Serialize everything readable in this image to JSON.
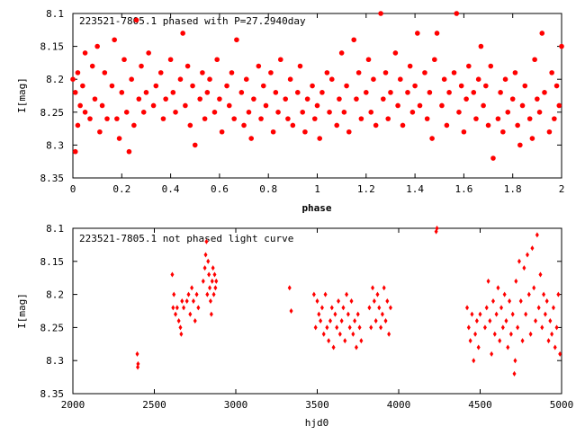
{
  "chart_data": [
    {
      "type": "scatter",
      "title": "223521-7805.1 phased with P=27.2940day",
      "xlabel": "phase",
      "ylabel": "I[mag]",
      "xlim": [
        0,
        2
      ],
      "ylim": [
        8.1,
        8.35
      ],
      "y_inverted": true,
      "xticks": [
        "0",
        "0.2",
        "0.4",
        "0.6",
        "0.8",
        "1",
        "1.2",
        "1.4",
        "1.6",
        "1.8",
        "2"
      ],
      "xtick_values": [
        0,
        0.2,
        0.4,
        0.6,
        0.8,
        1.0,
        1.2,
        1.4,
        1.6,
        1.8,
        2.0
      ],
      "yticks": [
        "8.1",
        "8.15",
        "8.2",
        "8.25",
        "8.3",
        "8.35"
      ],
      "ytick_values": [
        8.1,
        8.15,
        8.2,
        8.25,
        8.3,
        8.35
      ],
      "grid": false,
      "marker": "filled-circle",
      "color": "#ff0000",
      "points": [
        [
          0.0,
          8.2
        ],
        [
          0.01,
          8.22
        ],
        [
          0.01,
          8.31
        ],
        [
          0.02,
          8.27
        ],
        [
          0.02,
          8.19
        ],
        [
          0.03,
          8.24
        ],
        [
          0.04,
          8.21
        ],
        [
          0.05,
          8.25
        ],
        [
          0.05,
          8.16
        ],
        [
          0.07,
          8.26
        ],
        [
          0.08,
          8.18
        ],
        [
          0.09,
          8.23
        ],
        [
          0.1,
          8.15
        ],
        [
          0.11,
          8.28
        ],
        [
          0.12,
          8.24
        ],
        [
          0.13,
          8.19
        ],
        [
          0.14,
          8.26
        ],
        [
          0.16,
          8.21
        ],
        [
          0.17,
          8.14
        ],
        [
          0.18,
          8.26
        ],
        [
          0.19,
          8.29
        ],
        [
          0.2,
          8.22
        ],
        [
          0.21,
          8.17
        ],
        [
          0.22,
          8.25
        ],
        [
          0.23,
          8.31
        ],
        [
          0.24,
          8.2
        ],
        [
          0.25,
          8.27
        ],
        [
          0.26,
          8.11
        ],
        [
          0.27,
          8.23
        ],
        [
          0.28,
          8.18
        ],
        [
          0.29,
          8.25
        ],
        [
          0.3,
          8.22
        ],
        [
          0.31,
          8.16
        ],
        [
          0.33,
          8.24
        ],
        [
          0.34,
          8.21
        ],
        [
          0.36,
          8.19
        ],
        [
          0.37,
          8.26
        ],
        [
          0.38,
          8.23
        ],
        [
          0.4,
          8.17
        ],
        [
          0.41,
          8.22
        ],
        [
          0.42,
          8.25
        ],
        [
          0.44,
          8.2
        ],
        [
          0.45,
          8.13
        ],
        [
          0.46,
          8.24
        ],
        [
          0.47,
          8.18
        ],
        [
          0.48,
          8.27
        ],
        [
          0.49,
          8.21
        ],
        [
          0.5,
          8.3
        ],
        [
          0.52,
          8.23
        ],
        [
          0.53,
          8.19
        ],
        [
          0.54,
          8.26
        ],
        [
          0.55,
          8.22
        ],
        [
          0.56,
          8.2
        ],
        [
          0.58,
          8.25
        ],
        [
          0.59,
          8.17
        ],
        [
          0.6,
          8.23
        ],
        [
          0.61,
          8.28
        ],
        [
          0.63,
          8.21
        ],
        [
          0.64,
          8.24
        ],
        [
          0.65,
          8.19
        ],
        [
          0.66,
          8.26
        ],
        [
          0.67,
          8.14
        ],
        [
          0.69,
          8.22
        ],
        [
          0.7,
          8.27
        ],
        [
          0.71,
          8.2
        ],
        [
          0.72,
          8.25
        ],
        [
          0.73,
          8.29
        ],
        [
          0.74,
          8.23
        ],
        [
          0.76,
          8.18
        ],
        [
          0.77,
          8.26
        ],
        [
          0.78,
          8.21
        ],
        [
          0.79,
          8.24
        ],
        [
          0.81,
          8.19
        ],
        [
          0.82,
          8.28
        ],
        [
          0.83,
          8.22
        ],
        [
          0.84,
          8.25
        ],
        [
          0.85,
          8.17
        ],
        [
          0.87,
          8.23
        ],
        [
          0.88,
          8.26
        ],
        [
          0.89,
          8.2
        ],
        [
          0.9,
          8.27
        ],
        [
          0.92,
          8.22
        ],
        [
          0.93,
          8.18
        ],
        [
          0.94,
          8.25
        ],
        [
          0.95,
          8.28
        ],
        [
          0.96,
          8.23
        ],
        [
          0.98,
          8.21
        ],
        [
          0.99,
          8.26
        ],
        [
          1.0,
          8.24
        ],
        [
          1.01,
          8.29
        ],
        [
          1.02,
          8.22
        ],
        [
          1.04,
          8.19
        ],
        [
          1.05,
          8.25
        ],
        [
          1.06,
          8.2
        ],
        [
          1.08,
          8.27
        ],
        [
          1.09,
          8.23
        ],
        [
          1.1,
          8.16
        ],
        [
          1.11,
          8.25
        ],
        [
          1.12,
          8.21
        ],
        [
          1.13,
          8.28
        ],
        [
          1.15,
          8.14
        ],
        [
          1.16,
          8.23
        ],
        [
          1.17,
          8.19
        ],
        [
          1.18,
          8.26
        ],
        [
          1.2,
          8.22
        ],
        [
          1.21,
          8.17
        ],
        [
          1.22,
          8.25
        ],
        [
          1.23,
          8.2
        ],
        [
          1.24,
          8.27
        ],
        [
          1.26,
          8.1
        ],
        [
          1.27,
          8.23
        ],
        [
          1.28,
          8.19
        ],
        [
          1.29,
          8.26
        ],
        [
          1.3,
          8.22
        ],
        [
          1.32,
          8.16
        ],
        [
          1.33,
          8.24
        ],
        [
          1.34,
          8.2
        ],
        [
          1.35,
          8.27
        ],
        [
          1.37,
          8.22
        ],
        [
          1.38,
          8.18
        ],
        [
          1.39,
          8.25
        ],
        [
          1.4,
          8.21
        ],
        [
          1.41,
          8.13
        ],
        [
          1.42,
          8.24
        ],
        [
          1.44,
          8.19
        ],
        [
          1.45,
          8.26
        ],
        [
          1.46,
          8.22
        ],
        [
          1.47,
          8.29
        ],
        [
          1.48,
          8.17
        ],
        [
          1.49,
          8.13
        ],
        [
          1.51,
          8.24
        ],
        [
          1.52,
          8.2
        ],
        [
          1.53,
          8.27
        ],
        [
          1.54,
          8.22
        ],
        [
          1.56,
          8.19
        ],
        [
          1.57,
          8.1
        ],
        [
          1.58,
          8.25
        ],
        [
          1.59,
          8.21
        ],
        [
          1.6,
          8.28
        ],
        [
          1.61,
          8.23
        ],
        [
          1.62,
          8.18
        ],
        [
          1.64,
          8.22
        ],
        [
          1.65,
          8.26
        ],
        [
          1.66,
          8.2
        ],
        [
          1.67,
          8.15
        ],
        [
          1.68,
          8.24
        ],
        [
          1.69,
          8.21
        ],
        [
          1.7,
          8.27
        ],
        [
          1.71,
          8.18
        ],
        [
          1.72,
          8.32
        ],
        [
          1.74,
          8.26
        ],
        [
          1.75,
          8.22
        ],
        [
          1.76,
          8.28
        ],
        [
          1.77,
          8.2
        ],
        [
          1.78,
          8.25
        ],
        [
          1.8,
          8.23
        ],
        [
          1.81,
          8.19
        ],
        [
          1.82,
          8.27
        ],
        [
          1.83,
          8.3
        ],
        [
          1.84,
          8.24
        ],
        [
          1.85,
          8.21
        ],
        [
          1.87,
          8.26
        ],
        [
          1.88,
          8.29
        ],
        [
          1.89,
          8.17
        ],
        [
          1.9,
          8.23
        ],
        [
          1.91,
          8.25
        ],
        [
          1.92,
          8.13
        ],
        [
          1.93,
          8.22
        ],
        [
          1.95,
          8.28
        ],
        [
          1.96,
          8.19
        ],
        [
          1.97,
          8.26
        ],
        [
          1.98,
          8.21
        ],
        [
          1.99,
          8.24
        ],
        [
          2.0,
          8.15
        ]
      ]
    },
    {
      "type": "scatter",
      "title": "223521-7805.1 not phased light curve",
      "xlabel": "hjd0",
      "ylabel": "I[mag]",
      "xlim": [
        2000,
        5000
      ],
      "ylim": [
        8.1,
        8.35
      ],
      "y_inverted": true,
      "xticks": [
        "2000",
        "2500",
        "3000",
        "3500",
        "4000",
        "4500",
        "5000"
      ],
      "xtick_values": [
        2000,
        2500,
        3000,
        3500,
        4000,
        4500,
        5000
      ],
      "yticks": [
        "8.1",
        "8.15",
        "8.2",
        "8.25",
        "8.3",
        "8.35"
      ],
      "ytick_values": [
        8.1,
        8.15,
        8.2,
        8.25,
        8.3,
        8.35
      ],
      "grid": false,
      "marker": "diamond",
      "color": "#ff0000",
      "points": [
        [
          2395,
          8.29
        ],
        [
          2398,
          8.31
        ],
        [
          2400,
          8.305
        ],
        [
          2610,
          8.17
        ],
        [
          2615,
          8.22
        ],
        [
          2620,
          8.2
        ],
        [
          2630,
          8.23
        ],
        [
          2640,
          8.22
        ],
        [
          2650,
          8.24
        ],
        [
          2660,
          8.25
        ],
        [
          2665,
          8.26
        ],
        [
          2670,
          8.21
        ],
        [
          2680,
          8.22
        ],
        [
          2700,
          8.21
        ],
        [
          2710,
          8.2
        ],
        [
          2720,
          8.23
        ],
        [
          2730,
          8.19
        ],
        [
          2740,
          8.21
        ],
        [
          2750,
          8.24
        ],
        [
          2760,
          8.2
        ],
        [
          2770,
          8.22
        ],
        [
          2800,
          8.18
        ],
        [
          2810,
          8.16
        ],
        [
          2815,
          8.14
        ],
        [
          2820,
          8.12
        ],
        [
          2825,
          8.2
        ],
        [
          2830,
          8.15
        ],
        [
          2835,
          8.17
        ],
        [
          2840,
          8.19
        ],
        [
          2845,
          8.21
        ],
        [
          2850,
          8.23
        ],
        [
          2855,
          8.18
        ],
        [
          2860,
          8.16
        ],
        [
          2865,
          8.2
        ],
        [
          2870,
          8.17
        ],
        [
          2875,
          8.19
        ],
        [
          2880,
          8.18
        ],
        [
          3330,
          8.19
        ],
        [
          3340,
          8.225
        ],
        [
          3480,
          8.2
        ],
        [
          3490,
          8.25
        ],
        [
          3500,
          8.21
        ],
        [
          3510,
          8.23
        ],
        [
          3520,
          8.24
        ],
        [
          3530,
          8.22
        ],
        [
          3540,
          8.26
        ],
        [
          3550,
          8.2
        ],
        [
          3560,
          8.25
        ],
        [
          3570,
          8.27
        ],
        [
          3580,
          8.24
        ],
        [
          3590,
          8.22
        ],
        [
          3600,
          8.28
        ],
        [
          3610,
          8.23
        ],
        [
          3620,
          8.25
        ],
        [
          3630,
          8.21
        ],
        [
          3640,
          8.26
        ],
        [
          3650,
          8.24
        ],
        [
          3660,
          8.22
        ],
        [
          3670,
          8.27
        ],
        [
          3680,
          8.2
        ],
        [
          3690,
          8.23
        ],
        [
          3700,
          8.25
        ],
        [
          3710,
          8.21
        ],
        [
          3720,
          8.26
        ],
        [
          3730,
          8.24
        ],
        [
          3740,
          8.28
        ],
        [
          3750,
          8.23
        ],
        [
          3760,
          8.25
        ],
        [
          3770,
          8.27
        ],
        [
          3820,
          8.22
        ],
        [
          3830,
          8.25
        ],
        [
          3840,
          8.19
        ],
        [
          3850,
          8.21
        ],
        [
          3860,
          8.24
        ],
        [
          3870,
          8.2
        ],
        [
          3880,
          8.22
        ],
        [
          3890,
          8.25
        ],
        [
          3900,
          8.23
        ],
        [
          3910,
          8.19
        ],
        [
          3920,
          8.24
        ],
        [
          3930,
          8.21
        ],
        [
          3940,
          8.26
        ],
        [
          3950,
          8.22
        ],
        [
          4230,
          8.105
        ],
        [
          4235,
          8.1
        ],
        [
          4420,
          8.22
        ],
        [
          4430,
          8.25
        ],
        [
          4440,
          8.27
        ],
        [
          4450,
          8.23
        ],
        [
          4460,
          8.3
        ],
        [
          4470,
          8.26
        ],
        [
          4480,
          8.24
        ],
        [
          4490,
          8.28
        ],
        [
          4500,
          8.23
        ],
        [
          4530,
          8.25
        ],
        [
          4540,
          8.22
        ],
        [
          4550,
          8.18
        ],
        [
          4560,
          8.24
        ],
        [
          4570,
          8.29
        ],
        [
          4580,
          8.21
        ],
        [
          4590,
          8.26
        ],
        [
          4600,
          8.23
        ],
        [
          4610,
          8.19
        ],
        [
          4620,
          8.27
        ],
        [
          4630,
          8.22
        ],
        [
          4640,
          8.25
        ],
        [
          4650,
          8.2
        ],
        [
          4660,
          8.24
        ],
        [
          4670,
          8.28
        ],
        [
          4680,
          8.21
        ],
        [
          4690,
          8.26
        ],
        [
          4700,
          8.23
        ],
        [
          4710,
          8.32
        ],
        [
          4715,
          8.3
        ],
        [
          4720,
          8.18
        ],
        [
          4730,
          8.25
        ],
        [
          4740,
          8.15
        ],
        [
          4750,
          8.21
        ],
        [
          4760,
          8.27
        ],
        [
          4770,
          8.16
        ],
        [
          4780,
          8.23
        ],
        [
          4790,
          8.14
        ],
        [
          4800,
          8.2
        ],
        [
          4810,
          8.26
        ],
        [
          4820,
          8.13
        ],
        [
          4830,
          8.19
        ],
        [
          4840,
          8.24
        ],
        [
          4850,
          8.11
        ],
        [
          4860,
          8.22
        ],
        [
          4870,
          8.17
        ],
        [
          4880,
          8.25
        ],
        [
          4890,
          8.2
        ],
        [
          4900,
          8.23
        ],
        [
          4910,
          8.21
        ],
        [
          4920,
          8.27
        ],
        [
          4930,
          8.24
        ],
        [
          4940,
          8.26
        ],
        [
          4950,
          8.22
        ],
        [
          4960,
          8.28
        ],
        [
          4970,
          8.25
        ],
        [
          4980,
          8.2
        ],
        [
          4990,
          8.29
        ]
      ]
    }
  ]
}
